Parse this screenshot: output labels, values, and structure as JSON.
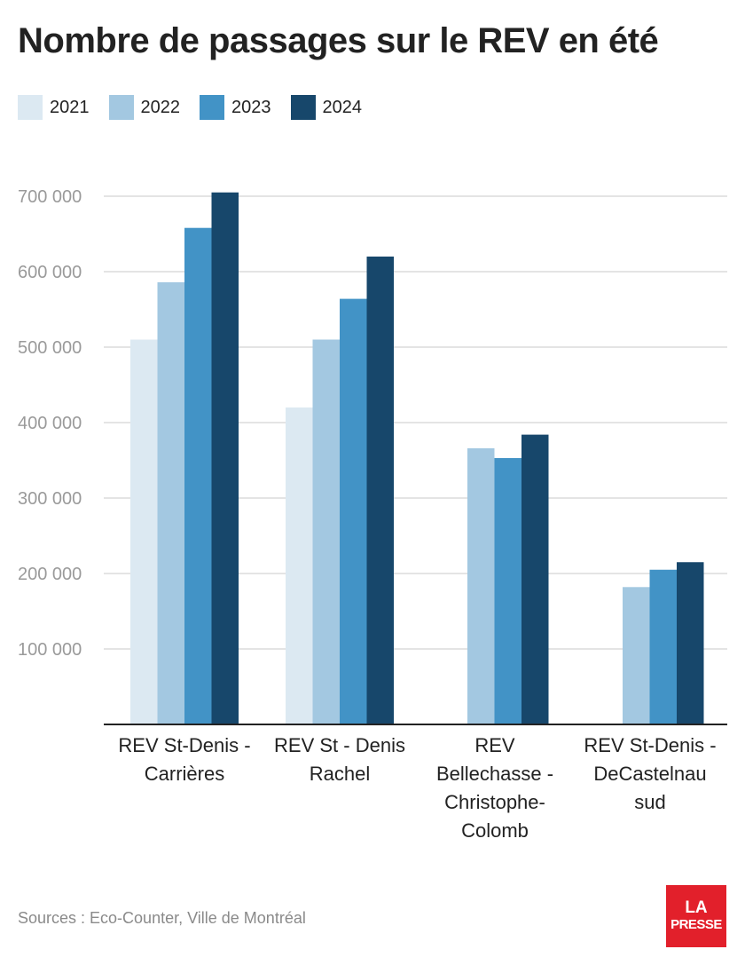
{
  "chart_data": {
    "type": "bar",
    "title": "Nombre de passages sur le REV en été",
    "xlabel": "",
    "ylabel": "",
    "ylim": [
      0,
      700000
    ],
    "yticks": [
      100000,
      200000,
      300000,
      400000,
      500000,
      600000,
      700000
    ],
    "ytick_labels": [
      "100 000",
      "200 000",
      "300 000",
      "400 000",
      "500 000",
      "600 000",
      "700 000"
    ],
    "grid": true,
    "legend_position": "top-left",
    "categories": [
      [
        "REV St-Denis -",
        "Carrières"
      ],
      [
        "REV St - Denis",
        "Rachel"
      ],
      [
        "REV",
        "Bellechasse -",
        "Christophe-",
        "Colomb"
      ],
      [
        "REV St-Denis -",
        "DeCastelnau",
        "sud"
      ]
    ],
    "series": [
      {
        "name": "2021",
        "color": "#dce9f2",
        "values": [
          510000,
          420000,
          null,
          null
        ]
      },
      {
        "name": "2022",
        "color": "#a3c8e1",
        "values": [
          586000,
          510000,
          366000,
          182000
        ]
      },
      {
        "name": "2023",
        "color": "#4293c6",
        "values": [
          658000,
          564000,
          353000,
          205000
        ]
      },
      {
        "name": "2024",
        "color": "#17476b",
        "values": [
          705000,
          620000,
          384000,
          215000
        ]
      }
    ]
  },
  "source": "Sources : Eco-Counter, Ville de Montréal",
  "logo": {
    "line1": "LA",
    "line2": "PRESSE",
    "color": "#e2202b"
  }
}
